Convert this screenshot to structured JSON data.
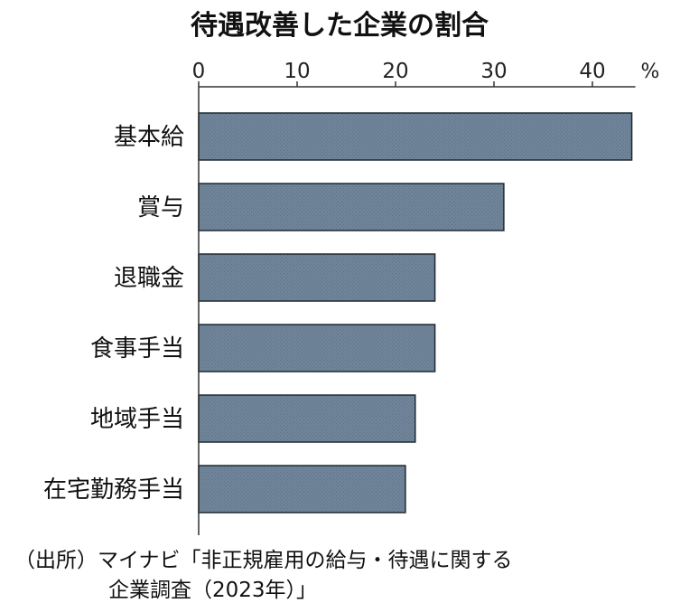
{
  "chart_data": {
    "type": "bar",
    "orientation": "horizontal",
    "title": "待遇改善した企業の割合",
    "unit": "%",
    "xlim": [
      0,
      44
    ],
    "ticks": [
      0,
      10,
      20,
      30,
      40
    ],
    "tick_labels": [
      "0",
      "10",
      "20",
      "30",
      "40"
    ],
    "categories": [
      "基本給",
      "賞与",
      "退職金",
      "食事手当",
      "地域手当",
      "在宅勤務手当"
    ],
    "values": [
      44,
      31,
      24,
      24,
      22,
      21
    ],
    "bar_color": "#6f8499",
    "grid": false,
    "axis_position": "top"
  },
  "source": {
    "line1": "（出所）マイナビ「非正規雇用の給与・待遇に関する",
    "line2": "企業調査（2023年）」"
  }
}
